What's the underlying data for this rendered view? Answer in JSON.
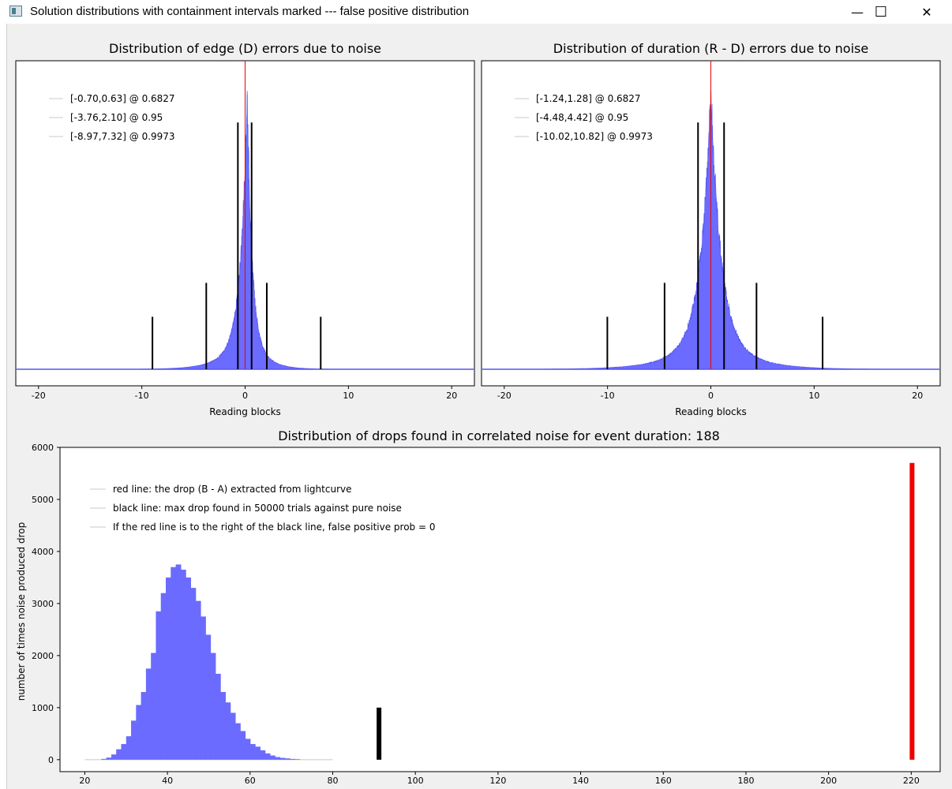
{
  "window": {
    "title": "Solution distributions with containment intervals marked --- false positive distribution",
    "minimize_glyph": "—",
    "maximize_glyph": "☐",
    "close_glyph": "✕"
  },
  "colors": {
    "hist": "#6b6bff",
    "histline": "#5555ee",
    "red": "#ee0000",
    "black": "#000000"
  },
  "chart_data": [
    {
      "type": "area",
      "title": "Distribution of edge (D) errors due to noise",
      "xlabel": "Reading blocks",
      "ylabel": "",
      "xlim": [
        -22.2,
        22.2
      ],
      "xticks": [
        -20,
        -10,
        0,
        10,
        20
      ],
      "yticks": [],
      "peak_x": 0.2,
      "width_left": 0.6,
      "width_right": 0.45,
      "red_line_x": 0.0,
      "intervals": [
        {
          "low": -0.7,
          "high": 0.63,
          "height": 0.8
        },
        {
          "low": -3.76,
          "high": 2.1,
          "height": 0.28
        },
        {
          "low": -8.97,
          "high": 7.32,
          "height": 0.17
        }
      ],
      "legend": [
        "[-0.70,0.63] @ 0.6827",
        "[-3.76,2.10] @ 0.95",
        "[-8.97,7.32] @ 0.9973"
      ]
    },
    {
      "type": "area",
      "title": "Distribution of duration (R - D) errors due to noise",
      "xlabel": "Reading blocks",
      "ylabel": "",
      "xlim": [
        -22.2,
        22.2
      ],
      "xticks": [
        -20,
        -10,
        0,
        10,
        20
      ],
      "yticks": [],
      "peak_x": 0.0,
      "width_left": 0.95,
      "width_right": 0.95,
      "red_line_x": 0.0,
      "intervals": [
        {
          "low": -1.24,
          "high": 1.28,
          "height": 0.8
        },
        {
          "low": -4.48,
          "high": 4.42,
          "height": 0.28
        },
        {
          "low": -10.02,
          "high": 10.82,
          "height": 0.17
        }
      ],
      "legend": [
        "[-1.24,1.28] @ 0.6827",
        "[-4.48,4.42] @ 0.95",
        "[-10.02,10.82] @ 0.9973"
      ]
    },
    {
      "type": "bar",
      "title": "Distribution of drops found in correlated noise for event duration: 188",
      "xlabel": "",
      "ylabel": "number of times noise produced drop",
      "xlim": [
        14,
        227
      ],
      "ylim": [
        -230,
        6000
      ],
      "xticks": [
        20,
        40,
        60,
        80,
        100,
        120,
        140,
        160,
        180,
        200,
        220
      ],
      "yticks": [
        0,
        1000,
        2000,
        3000,
        4000,
        5000,
        6000
      ],
      "bin_start": 24,
      "bin_width": 1.2,
      "counts": [
        15,
        40,
        100,
        200,
        300,
        450,
        750,
        1050,
        1300,
        1750,
        2050,
        2850,
        3200,
        3500,
        3700,
        3750,
        3650,
        3500,
        3300,
        3050,
        2750,
        2400,
        2050,
        1650,
        1300,
        1100,
        900,
        700,
        550,
        400,
        300,
        250,
        180,
        120,
        80,
        50,
        35,
        25,
        15,
        10
      ],
      "black_line_x": 91.2,
      "black_line_height": 1000,
      "red_line_x": 220.2,
      "red_line_height": 5700,
      "legend": [
        "red line: the drop (B - A) extracted from lightcurve",
        "black line: max drop found in 50000 trials against pure noise",
        "If the red line is to the right of the black line, false positive prob = 0"
      ]
    }
  ]
}
